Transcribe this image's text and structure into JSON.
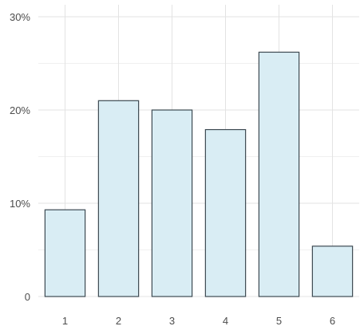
{
  "chart_data": {
    "type": "bar",
    "title": "",
    "xlabel": "",
    "ylabel": "",
    "categories": [
      "1",
      "2",
      "3",
      "4",
      "5",
      "6"
    ],
    "values": [
      9.3,
      21.0,
      20.0,
      17.9,
      26.2,
      5.4
    ],
    "ylim": [
      0,
      30
    ],
    "y_ticks": [
      0,
      10,
      20,
      30
    ],
    "y_tick_labels": [
      "0",
      "10%",
      "20%",
      "30%"
    ],
    "grid": true,
    "colors": {
      "bar_fill": "#d9edf4",
      "bar_stroke": "#3d4a52",
      "grid_major": "#e3e3e3",
      "grid_minor": "#f0f0f0",
      "text": "#4d4d4d"
    }
  }
}
